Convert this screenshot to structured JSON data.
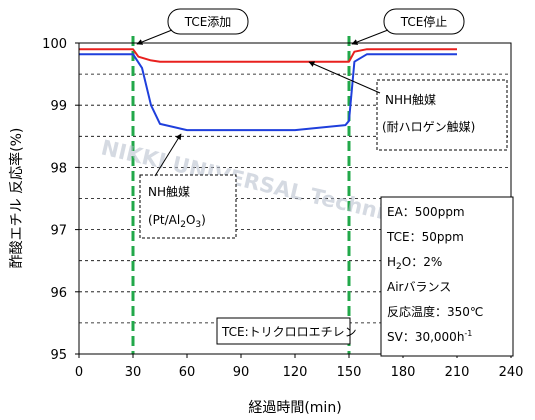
{
  "watermark": "NIKKI UNIVERSAL Technical Data",
  "chart_data": {
    "type": "line",
    "xlabel": "経過時間(min)",
    "ylabel": "酢酸エチル 反応率(%)",
    "xlim": [
      0,
      240
    ],
    "ylim": [
      95,
      100
    ],
    "x_ticks": [
      0,
      30,
      60,
      90,
      120,
      150,
      180,
      210,
      240
    ],
    "y_ticks": [
      95,
      96,
      97,
      98,
      99,
      100
    ],
    "grid": "horizontal dashed at 0.5% intervals",
    "colors": {
      "nhh": "#e8201e",
      "nh": "#1f3fdc",
      "marker": "#22a84a"
    },
    "series": [
      {
        "key": "nhh",
        "x": [
          0,
          30,
          33,
          40,
          45,
          60,
          90,
          120,
          148,
          150,
          153,
          160,
          210
        ],
        "y": [
          99.9,
          99.9,
          99.78,
          99.72,
          99.7,
          99.7,
          99.7,
          99.7,
          99.7,
          99.7,
          99.86,
          99.9,
          99.9
        ]
      },
      {
        "key": "nh",
        "x": [
          0,
          30,
          35,
          40,
          45,
          60,
          90,
          120,
          148,
          150,
          153,
          160,
          210
        ],
        "y": [
          99.82,
          99.82,
          99.6,
          99.0,
          98.7,
          98.6,
          98.6,
          98.6,
          98.68,
          98.75,
          99.7,
          99.82,
          99.82
        ]
      }
    ],
    "vertical_markers": [
      30,
      150
    ],
    "annotations": {
      "tce_add": "TCE添加",
      "tce_stop": "TCE停止",
      "nhh_line1": "NHH触媒",
      "nhh_line2": "(耐ハロゲン触媒)",
      "nh_line1": "NH触媒",
      "nh_line2_pre": "(Pt/Al",
      "nh_line2_sub1": "2",
      "nh_line2_mid": "O",
      "nh_line2_sub2": "3",
      "nh_line2_post": ")"
    },
    "conditions": {
      "ea": "EA：500ppm",
      "tce": "TCE：50ppm",
      "h2o_pre": "H",
      "h2o_sub": "2",
      "h2o_post": "O：2%",
      "air": "Airバランス",
      "temp": "反応温度：350℃",
      "sv_pre": "SV：30,000h",
      "sv_sup": "-1"
    },
    "legend_note": "TCE:トリクロロエチレン"
  }
}
